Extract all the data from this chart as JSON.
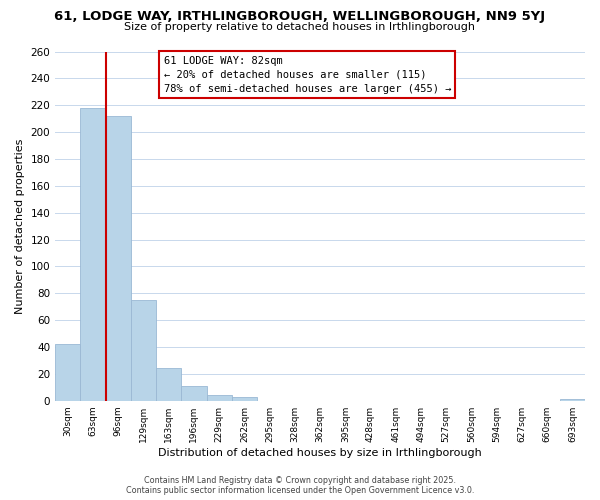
{
  "title": "61, LODGE WAY, IRTHLINGBOROUGH, WELLINGBOROUGH, NN9 5YJ",
  "subtitle": "Size of property relative to detached houses in Irthlingborough",
  "xlabel": "Distribution of detached houses by size in Irthlingborough",
  "ylabel": "Number of detached properties",
  "bar_values": [
    42,
    218,
    212,
    75,
    24,
    11,
    4,
    3,
    0,
    0,
    0,
    0,
    0,
    0,
    0,
    0,
    0,
    0,
    0,
    0,
    1
  ],
  "bar_labels": [
    "30sqm",
    "63sqm",
    "96sqm",
    "129sqm",
    "163sqm",
    "196sqm",
    "229sqm",
    "262sqm",
    "295sqm",
    "328sqm",
    "362sqm",
    "395sqm",
    "428sqm",
    "461sqm",
    "494sqm",
    "527sqm",
    "560sqm",
    "594sqm",
    "627sqm",
    "660sqm",
    "693sqm"
  ],
  "bar_color": "#b8d4e8",
  "bar_edge_color": "#9ab8d4",
  "ylim": [
    0,
    260
  ],
  "yticks": [
    0,
    20,
    40,
    60,
    80,
    100,
    120,
    140,
    160,
    180,
    200,
    220,
    240,
    260
  ],
  "property_line_x": 1.5,
  "property_line_color": "#cc0000",
  "annotation_title": "61 LODGE WAY: 82sqm",
  "annotation_line1": "← 20% of detached houses are smaller (115)",
  "annotation_line2": "78% of semi-detached houses are larger (455) →",
  "annotation_box_color": "#ffffff",
  "annotation_box_edge": "#cc0000",
  "footer_line1": "Contains HM Land Registry data © Crown copyright and database right 2025.",
  "footer_line2": "Contains public sector information licensed under the Open Government Licence v3.0.",
  "background_color": "#ffffff",
  "grid_color": "#c8d8ec"
}
